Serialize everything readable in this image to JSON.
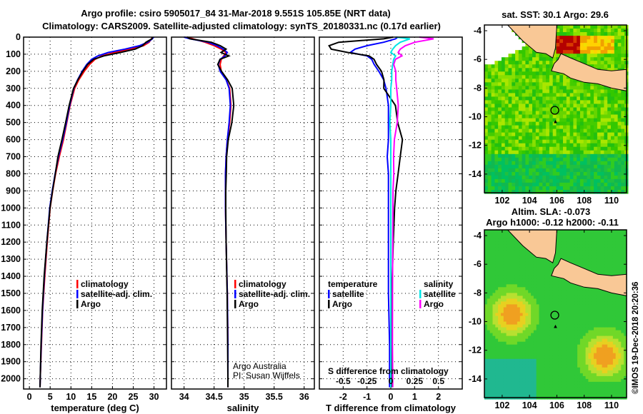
{
  "title_line1": "Argo profile: csiro 5905017_84 31-Mar-2018 9.551S 105.85E (NRT data)",
  "title_line2": "Climatology: CARS2009. Satellite-adjusted climatology: synTS_20180331.nc (0.17d earlier)",
  "credit": "©IMOS 19-Dec-2018 20:20:36",
  "colors": {
    "climatology": "#ff0000",
    "satellite": "#0000ff",
    "argo": "#000000",
    "s_satellite": "#00e5e5",
    "s_argo": "#ff00ff",
    "land": "#f9c896"
  },
  "chart_data": [
    {
      "type": "line",
      "xlabel": "temperature (deg C)",
      "ylabel": "depth",
      "xlim": [
        -1.4,
        33
      ],
      "ylim": [
        2060,
        0
      ],
      "xticks": [
        0,
        5,
        10,
        15,
        20,
        25,
        30
      ],
      "yticks": [
        0,
        100,
        200,
        300,
        400,
        500,
        600,
        700,
        800,
        900,
        1000,
        1100,
        1200,
        1300,
        1400,
        1500,
        1600,
        1700,
        1800,
        1900,
        2000
      ],
      "legend": [
        "climatology",
        "satellite-adj. clim.",
        "Argo"
      ],
      "depth": [
        0,
        10,
        30,
        50,
        70,
        90,
        110,
        130,
        160,
        200,
        250,
        300,
        400,
        500,
        600,
        700,
        800,
        900,
        1000,
        1200,
        1400,
        1600,
        1800,
        2000,
        2050
      ],
      "series": [
        {
          "name": "climatology",
          "color": "#ff0000",
          "values": [
            29.6,
            29.4,
            28.8,
            27.5,
            24.5,
            20.5,
            17.5,
            15.8,
            14.5,
            13.2,
            11.9,
            10.9,
            9.8,
            9.0,
            8.2,
            7.2,
            6.3,
            5.6,
            5.0,
            4.3,
            3.7,
            3.2,
            2.9,
            2.6,
            2.55
          ]
        },
        {
          "name": "satellite-adj. clim.",
          "color": "#0000ff",
          "values": [
            29.9,
            29.6,
            28.5,
            26.5,
            23,
            19,
            16.5,
            15,
            13.8,
            12.7,
            11.6,
            10.7,
            9.7,
            8.9,
            8.0,
            7.0,
            6.2,
            5.5,
            4.9,
            4.2,
            3.6,
            3.15,
            2.85,
            2.6,
            2.55
          ]
        },
        {
          "name": "Argo",
          "color": "#000000",
          "values": [
            29.6,
            29.5,
            28.0,
            27.2,
            25.5,
            22,
            18,
            15.5,
            14,
            12.8,
            11.6,
            10.6,
            9.6,
            8.8,
            7.9,
            6.9,
            6.2,
            5.5,
            4.9,
            4.2,
            3.6,
            3.15,
            2.85,
            2.6,
            2.55
          ]
        }
      ]
    },
    {
      "type": "line",
      "xlabel": "salinity",
      "ylabel": "depth",
      "xlim": [
        33.79,
        36.17
      ],
      "ylim": [
        2060,
        0
      ],
      "xticks": [
        34,
        34.5,
        35,
        35.5,
        36
      ],
      "legend": [
        "climatology",
        "satellite-adj. clim.",
        "Argo"
      ],
      "annotation": [
        "Argo Australia",
        "PI: Susan Wijffels"
      ],
      "depth": [
        0,
        10,
        30,
        50,
        70,
        90,
        110,
        130,
        160,
        200,
        250,
        300,
        400,
        500,
        600,
        700,
        800,
        900,
        1000,
        1200,
        1500,
        1800,
        2000,
        2050
      ],
      "series": [
        {
          "name": "climatology",
          "color": "#ff0000",
          "values": [
            34.05,
            34.15,
            34.35,
            34.5,
            34.62,
            34.7,
            34.66,
            34.62,
            34.6,
            34.62,
            34.7,
            34.76,
            34.78,
            34.76,
            34.72,
            34.7,
            34.69,
            34.69,
            34.69,
            34.7,
            34.72,
            34.73,
            34.73,
            34.73
          ]
        },
        {
          "name": "satellite-adj. clim.",
          "color": "#0000ff",
          "values": [
            34.0,
            34.1,
            34.4,
            34.55,
            34.65,
            34.72,
            34.68,
            34.6,
            34.57,
            34.6,
            34.7,
            34.75,
            34.77,
            34.75,
            34.72,
            34.7,
            34.69,
            34.69,
            34.69,
            34.7,
            34.72,
            34.73,
            34.73,
            34.73
          ]
        },
        {
          "name": "Argo",
          "color": "#000000",
          "values": [
            34.05,
            34.1,
            34.45,
            34.6,
            34.7,
            34.62,
            34.75,
            34.6,
            34.56,
            34.62,
            34.72,
            34.8,
            34.83,
            34.8,
            34.74,
            34.71,
            34.7,
            34.69,
            34.69,
            34.7,
            34.72,
            34.73,
            34.73,
            34.73
          ]
        }
      ]
    },
    {
      "type": "line",
      "xlabel": "T difference from climatology",
      "x2label": "S difference from climatology",
      "xlim": [
        -3,
        3
      ],
      "x2lim": [
        -0.75,
        0.75
      ],
      "xticks": [
        -2,
        -1,
        0,
        1,
        2
      ],
      "x2ticks": [
        -0.5,
        -0.25,
        0,
        0.25,
        0.5
      ],
      "x2ticklabels": [
        "-0.5",
        "-0.25",
        "0",
        "0.25",
        "0.5"
      ],
      "legend_temperature": {
        "title": "temperature",
        "items": [
          "satellite",
          "Argo"
        ]
      },
      "legend_salinity": {
        "title": "salinity",
        "items": [
          "satellite",
          "Argo"
        ]
      },
      "depth": [
        0,
        10,
        30,
        50,
        70,
        90,
        110,
        130,
        160,
        200,
        250,
        300,
        400,
        500,
        600,
        700,
        800,
        900,
        1000,
        1200,
        1500,
        1800,
        2000,
        2050
      ],
      "series": [
        {
          "name": "T satellite",
          "color": "#0000ff",
          "axis": "T",
          "values": [
            0.3,
            0.2,
            -0.3,
            -1.0,
            -1.5,
            -1.7,
            -1.0,
            -0.8,
            -0.7,
            -0.5,
            -0.3,
            -0.2,
            -0.1,
            -0.1,
            -0.1,
            -0.15,
            -0.1,
            -0.1,
            -0.1,
            -0.1,
            -0.1,
            -0.05,
            -0.05,
            -0.05
          ]
        },
        {
          "name": "T Argo",
          "color": "#000000",
          "axis": "T",
          "values": [
            0.1,
            -0.3,
            -2.2,
            -2.6,
            -2.5,
            -1.8,
            -0.9,
            -0.7,
            -0.6,
            -0.4,
            -0.3,
            -0.3,
            0.2,
            0.3,
            0.5,
            0.4,
            0.3,
            0.2,
            0.15,
            0.1,
            0.05,
            0.03,
            0.03,
            0.03
          ]
        },
        {
          "name": "S satellite",
          "color": "#00e5e5",
          "axis": "S",
          "values": [
            0.05,
            0.2,
            0.1,
            0.05,
            0.02,
            0.0,
            0.05,
            0.03,
            0.02,
            0.01,
            0.01,
            0.0,
            0.0,
            -0.01,
            0.0,
            0.0,
            0.0,
            0.0,
            0.0,
            0.0,
            0.0,
            0.0,
            0.0,
            0.0
          ]
        },
        {
          "name": "S Argo",
          "color": "#ff00ff",
          "axis": "S",
          "values": [
            0.3,
            0.45,
            0.25,
            0.15,
            0.1,
            0.08,
            0.12,
            0.05,
            0.03,
            0.05,
            0.05,
            0.06,
            0.08,
            0.07,
            0.04,
            0.03,
            0.03,
            0.02,
            0.02,
            0.02,
            0.02,
            0.02,
            0.02,
            0.02
          ]
        }
      ]
    },
    {
      "type": "heatmap",
      "title": "sat. SST: 30.1 Argo: 29.6",
      "lonlim": [
        100.7,
        111.1
      ],
      "latlim": [
        -15.3,
        -3.6
      ],
      "xticks": [
        102,
        104,
        106,
        108,
        110
      ],
      "yticks": [
        -4,
        -6,
        -8,
        -10,
        -12,
        -14
      ],
      "float_position": [
        105.85,
        -9.551
      ]
    },
    {
      "type": "heatmap",
      "title": "Altim. SLA: -0.073",
      "subtitle": "Argo h1000: -0.12 h2000: -0.11",
      "lonlim": [
        100.7,
        111.1
      ],
      "latlim": [
        -15.3,
        -3.6
      ],
      "xticks": [
        102,
        104,
        106,
        108,
        110
      ],
      "yticks": [
        -4,
        -6,
        -8,
        -10,
        -12,
        -14
      ],
      "float_position": [
        105.85,
        -9.551
      ]
    }
  ]
}
